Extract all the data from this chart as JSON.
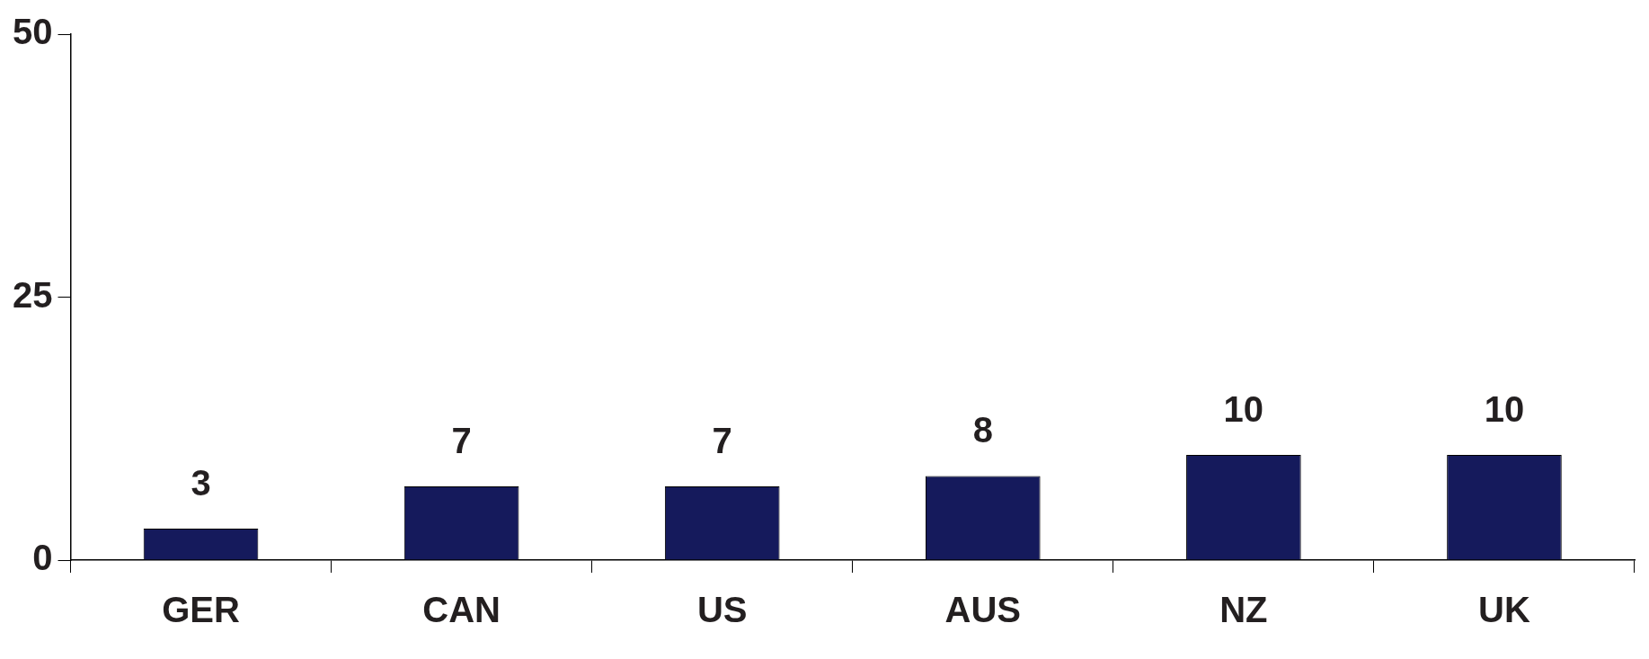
{
  "chart_data": {
    "type": "bar",
    "categories": [
      "GER",
      "CAN",
      "US",
      "AUS",
      "NZ",
      "UK"
    ],
    "values": [
      3,
      7,
      7,
      8,
      10,
      10
    ],
    "color": "#151a5c",
    "ylim": [
      0,
      50
    ],
    "yticks": [
      0,
      25,
      50
    ],
    "data_labels": true
  }
}
